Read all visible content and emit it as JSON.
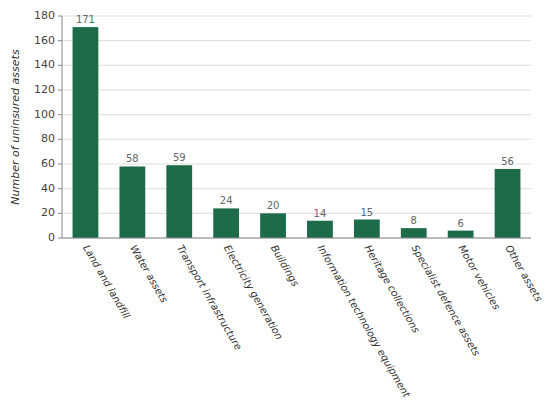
{
  "chart_data": {
    "type": "bar",
    "categories": [
      "Land and landfill",
      "Water assets",
      "Transport infrastructure",
      "Electricity generation",
      "Buildings",
      "Information technology equipment",
      "Heritage collections",
      "Specialist defence assets",
      "Motor vehicles",
      "Other assets"
    ],
    "values": [
      171,
      58,
      59,
      24,
      20,
      14,
      15,
      8,
      6,
      56
    ],
    "color": "#1e6b4a",
    "ylabel": "Number of uninsured assets",
    "ylim": [
      0,
      180
    ],
    "yticks": [
      0,
      20,
      40,
      60,
      80,
      100,
      120,
      140,
      160,
      180
    ],
    "grid": true,
    "data_labels": true
  }
}
